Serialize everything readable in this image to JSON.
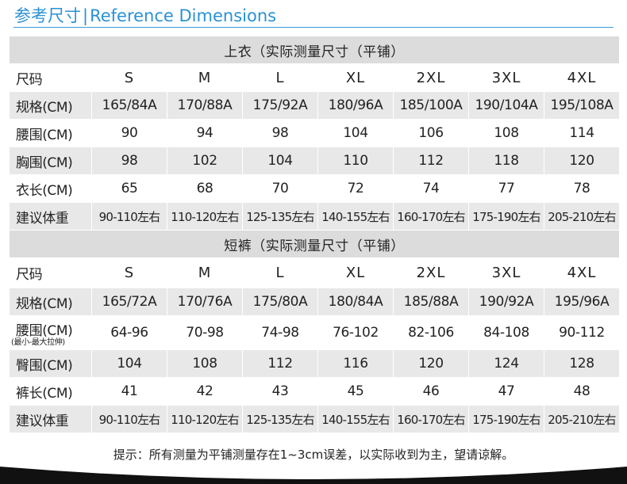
{
  "header": {
    "title_cn": "参考尺寸",
    "separator": "|",
    "title_en": "Reference Dimensions"
  },
  "top": {
    "section_title": "上衣（实际测量尺寸（平铺）",
    "row_labels": [
      "尺码",
      "规格(CM)",
      "腰围(CM)",
      "胸围(CM)",
      "衣长(CM)",
      "建议体重"
    ],
    "rows": [
      [
        "S",
        "M",
        "L",
        "XL",
        "2XL",
        "3XL",
        "4XL"
      ],
      [
        "165/84A",
        "170/88A",
        "175/92A",
        "180/96A",
        "185/100A",
        "190/104A",
        "195/108A"
      ],
      [
        "90",
        "94",
        "98",
        "104",
        "106",
        "108",
        "114"
      ],
      [
        "98",
        "102",
        "104",
        "110",
        "112",
        "118",
        "120"
      ],
      [
        "65",
        "68",
        "70",
        "72",
        "74",
        "77",
        "78"
      ],
      [
        "90-110左右",
        "110-120左右",
        "125-135左右",
        "140-155左右",
        "160-170左右",
        "175-190左右",
        "205-210左右"
      ]
    ]
  },
  "bottom": {
    "section_title": "短裤（实际测量尺寸（平铺）",
    "row_labels": [
      "尺码",
      "规格(CM)",
      "腰围(CM)",
      "臀围(CM)",
      "裤长(CM)",
      "建议体重"
    ],
    "waist_note": "(最小-最大拉伸)",
    "rows": [
      [
        "S",
        "M",
        "L",
        "XL",
        "2XL",
        "3XL",
        "4XL"
      ],
      [
        "165/72A",
        "170/76A",
        "175/80A",
        "180/84A",
        "185/88A",
        "190/92A",
        "195/96A"
      ],
      [
        "64-96",
        "70-98",
        "74-98",
        "76-102",
        "82-106",
        "84-108",
        "90-112"
      ],
      [
        "104",
        "108",
        "112",
        "116",
        "120",
        "124",
        "128"
      ],
      [
        "41",
        "42",
        "43",
        "45",
        "46",
        "47",
        "48"
      ],
      [
        "90-110左右",
        "110-120左右",
        "125-135左右",
        "140-155左右",
        "160-170左右",
        "175-190左右",
        "205-210左右"
      ]
    ]
  },
  "note": "提示：所有测量为平铺测量存在1~3cm误差，以实际收到为主，望请谅解。",
  "colors": {
    "accent": "#2a91d4",
    "shaded_row": "#e8e8e8",
    "section_band": "#dcdcdc",
    "swoosh": "#111111"
  }
}
